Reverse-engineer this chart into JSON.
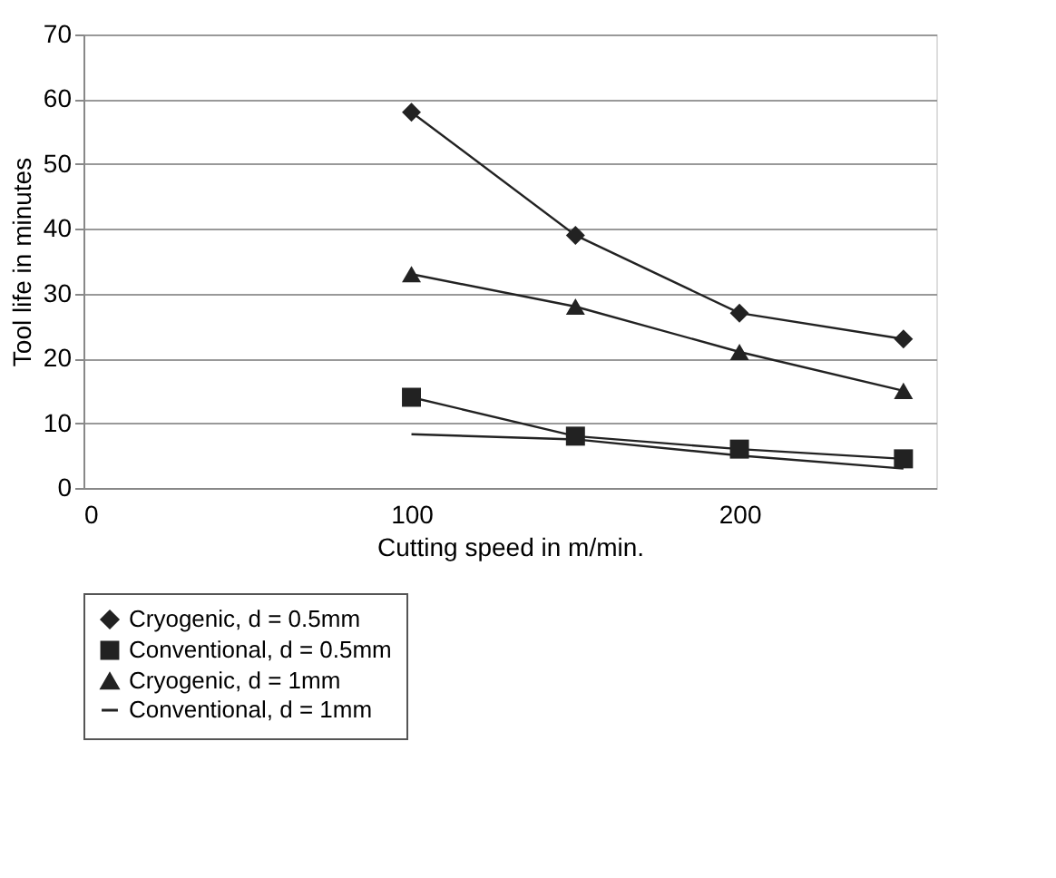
{
  "chart_data": {
    "type": "line",
    "xlabel": "Cutting speed in m/min.",
    "ylabel": "Tool life in minutes",
    "x": [
      100,
      150,
      200,
      250
    ],
    "series": [
      {
        "name": "Cryogenic, d = 0.5mm",
        "color": "#222222",
        "marker": "diamond",
        "values": [
          58,
          39,
          27,
          23
        ]
      },
      {
        "name": "Conventional, d = 0.5mm",
        "color": "#222222",
        "marker": "square",
        "values": [
          14,
          8,
          6,
          4.5
        ]
      },
      {
        "name": "Cryogenic, d = 1mm",
        "color": "#222222",
        "marker": "triangle",
        "values": [
          33,
          28,
          21,
          15
        ]
      },
      {
        "name": "Conventional, d = 1mm",
        "color": "#222222",
        "marker": "none",
        "values": [
          8.3,
          7.5,
          5,
          3
        ]
      }
    ],
    "xlim": [
      0,
      260
    ],
    "xticks": [
      0,
      100,
      200
    ],
    "ylim": [
      0,
      70
    ],
    "yticks": [
      0,
      10,
      20,
      30,
      40,
      50,
      60,
      70
    ],
    "grid": "y",
    "legend": "bottom",
    "line_style": "solid"
  }
}
